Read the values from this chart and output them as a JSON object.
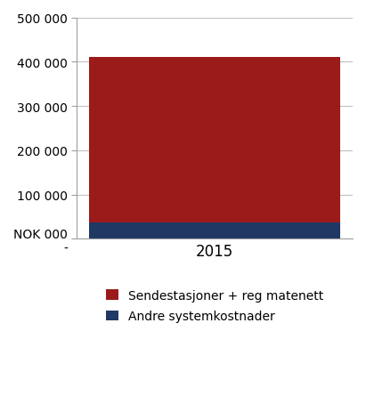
{
  "categories": [
    "2015"
  ],
  "blue_values": [
    37000
  ],
  "red_values": [
    373000
  ],
  "bar_color_red": "#9B1B1B",
  "bar_color_blue": "#1F3864",
  "ylim": [
    0,
    500000
  ],
  "yticks": [
    0,
    100000,
    200000,
    300000,
    400000,
    500000
  ],
  "ytick_labels": [
    "NOK 000\n-",
    "100 000",
    "200 000",
    "300 000",
    "400 000",
    "500 000"
  ],
  "legend_red": "Sendestasjoner + reg matenett",
  "legend_blue": "Andre systemkostnader",
  "background_color": "#FFFFFF",
  "bar_width": 0.45,
  "grid_color": "#C0C0C0",
  "spine_color": "#A0A0A0",
  "tick_fontsize": 10,
  "legend_fontsize": 10
}
